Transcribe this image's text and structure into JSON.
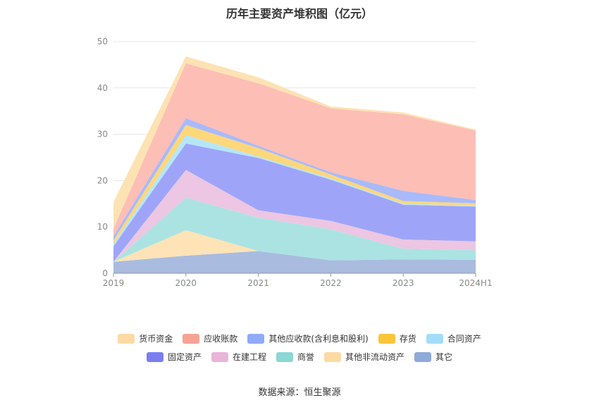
{
  "title": "历年主要资产堆积图（亿元）",
  "source": "数据来源：恒生聚源",
  "chart_data": {
    "type": "area",
    "stacked": true,
    "categories": [
      "2019",
      "2020",
      "2021",
      "2022",
      "2023",
      "2024H1"
    ],
    "ylim": [
      0,
      50
    ],
    "yticks": [
      0,
      10,
      20,
      30,
      40,
      50
    ],
    "grid": true,
    "legend_position": "bottom",
    "series": [
      {
        "name": "其它",
        "color": "#a9bcdf",
        "values": [
          2.5,
          3.8,
          4.8,
          2.8,
          3.0,
          2.9
        ]
      },
      {
        "name": "其他非流动资产",
        "color": "#fde3b6",
        "values": [
          0.0,
          5.5,
          0.0,
          0.0,
          0.0,
          0.0
        ]
      },
      {
        "name": "商誉",
        "color": "#abe3e2",
        "values": [
          0.0,
          7.0,
          7.2,
          6.7,
          2.3,
          2.1
        ]
      },
      {
        "name": "在建工程",
        "color": "#ecc6e2",
        "values": [
          0.0,
          6.0,
          1.6,
          1.8,
          2.0,
          1.9
        ]
      },
      {
        "name": "固定资产",
        "color": "#9ea5f8",
        "values": [
          3.3,
          5.7,
          11.3,
          8.9,
          7.5,
          7.5
        ]
      },
      {
        "name": "合同资产",
        "color": "#b5e6f8",
        "values": [
          0.5,
          1.8,
          0.3,
          0.3,
          0.2,
          0.2
        ]
      },
      {
        "name": "存货",
        "color": "#fdd77a",
        "values": [
          0.8,
          2.2,
          1.8,
          0.8,
          0.6,
          0.5
        ]
      },
      {
        "name": "其他应收款(含利息和股利)",
        "color": "#a8bafc",
        "values": [
          0.9,
          1.5,
          0.5,
          0.5,
          2.2,
          0.7
        ]
      },
      {
        "name": "应收账款",
        "color": "#fdbeb6",
        "values": [
          1.6,
          11.8,
          13.5,
          13.8,
          16.5,
          15.0
        ]
      },
      {
        "name": "货币资金",
        "color": "#fde2b3",
        "values": [
          5.8,
          1.5,
          1.3,
          0.4,
          0.4,
          0.2
        ]
      }
    ],
    "legend_rows": [
      [
        {
          "name": "货币资金",
          "color": "#fdd9a4"
        },
        {
          "name": "应收账款",
          "color": "#f7a393"
        },
        {
          "name": "其他应收款(含利息和股利)",
          "color": "#8eaaf8"
        },
        {
          "name": "存货",
          "color": "#fcc539"
        },
        {
          "name": "合同资产",
          "color": "#a3dcf7"
        }
      ],
      [
        {
          "name": "固定资产",
          "color": "#7a7ef1"
        },
        {
          "name": "在建工程",
          "color": "#e8b5d8"
        },
        {
          "name": "商誉",
          "color": "#8bd7d3"
        },
        {
          "name": "其他非流动资产",
          "color": "#fdd9a4"
        },
        {
          "name": "其它",
          "color": "#8fa9da"
        }
      ]
    ]
  }
}
